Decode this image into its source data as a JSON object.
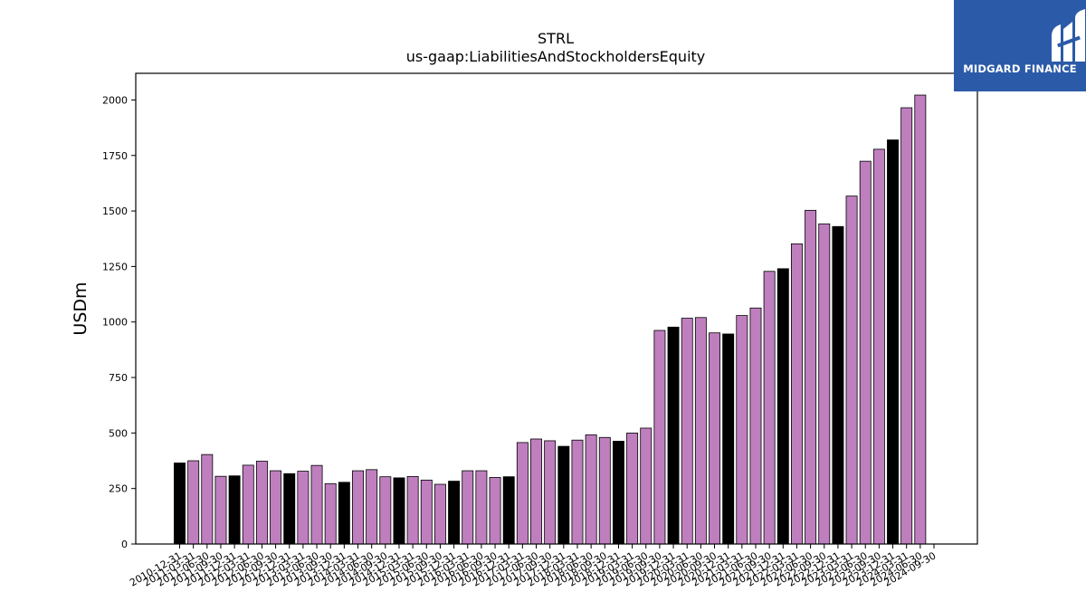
{
  "brand": {
    "name": "MIDGARD FINANCE",
    "bg_color": "#2b5aa8"
  },
  "chart_data": {
    "type": "bar",
    "title": "STRL",
    "subtitle": "us-gaap:LiabilitiesAndStockholdersEquity",
    "ylabel": "USDm",
    "xlabel": "",
    "ylim": [
      0,
      2120
    ],
    "yticks": [
      0,
      250,
      500,
      750,
      1000,
      1250,
      1500,
      1750,
      2000
    ],
    "grid": false,
    "colors": {
      "annual": "#000000",
      "quarterly": "#bf7fbf"
    },
    "categories": [
      "2010-12-31",
      "2011-03-31",
      "2011-06-30",
      "2011-09-30",
      "2011-12-31",
      "2012-03-31",
      "2012-06-30",
      "2012-09-30",
      "2012-12-31",
      "2013-03-31",
      "2013-06-30",
      "2013-09-30",
      "2013-12-31",
      "2014-03-31",
      "2014-06-30",
      "2014-09-30",
      "2014-12-31",
      "2015-03-31",
      "2015-06-30",
      "2015-09-30",
      "2015-12-31",
      "2016-03-31",
      "2016-06-30",
      "2016-09-30",
      "2016-12-31",
      "2017-03-31",
      "2017-06-30",
      "2017-09-30",
      "2017-12-31",
      "2018-03-31",
      "2018-06-30",
      "2018-09-30",
      "2018-12-31",
      "2019-03-31",
      "2019-06-30",
      "2019-09-30",
      "2019-12-31",
      "2020-03-31",
      "2020-06-30",
      "2020-09-30",
      "2020-12-31",
      "2021-03-31",
      "2021-06-30",
      "2021-09-30",
      "2021-12-31",
      "2022-03-31",
      "2022-06-30",
      "2022-09-30",
      "2022-12-31",
      "2023-03-31",
      "2023-06-30",
      "2023-09-30",
      "2023-12-31",
      "2024-03-31",
      "2024-06-30",
      "2024-09-30"
    ],
    "values": [
      365,
      375,
      403,
      305,
      307,
      355,
      373,
      330,
      317,
      328,
      354,
      272,
      278,
      330,
      335,
      303,
      298,
      304,
      288,
      269,
      283,
      330,
      330,
      300,
      303,
      457,
      473,
      465,
      440,
      468,
      492,
      480,
      463,
      500,
      522,
      962,
      977,
      1017,
      1020,
      951,
      946,
      1029,
      1063,
      1228,
      1240,
      1352,
      1503,
      1442,
      1430,
      1567,
      1724,
      1778,
      1820,
      1965,
      2022,
      null
    ],
    "is_annual": [
      true,
      false,
      false,
      false,
      true,
      false,
      false,
      false,
      true,
      false,
      false,
      false,
      true,
      false,
      false,
      false,
      true,
      false,
      false,
      false,
      true,
      false,
      false,
      false,
      true,
      false,
      false,
      false,
      true,
      false,
      false,
      false,
      true,
      false,
      false,
      false,
      true,
      false,
      false,
      false,
      true,
      false,
      false,
      false,
      true,
      false,
      false,
      false,
      true,
      false,
      false,
      false,
      true,
      false,
      false,
      false
    ]
  }
}
